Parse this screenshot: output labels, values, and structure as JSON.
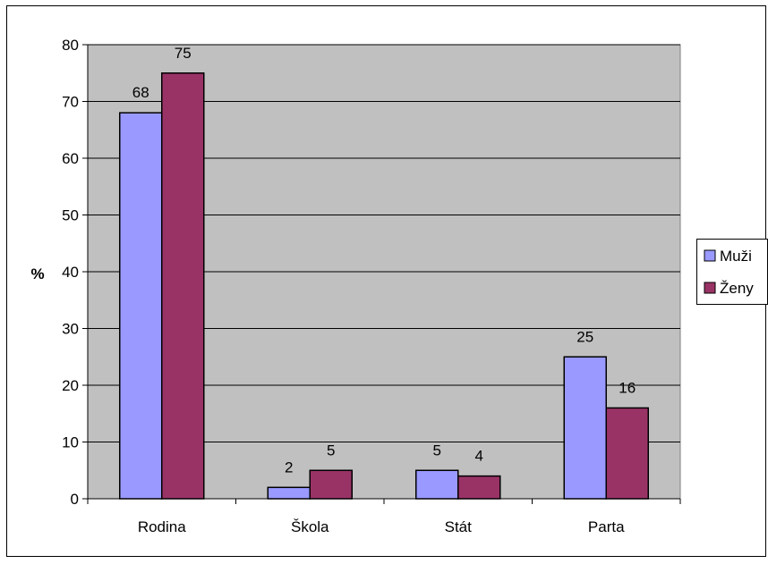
{
  "chart_data": {
    "type": "bar",
    "title": "",
    "xlabel": "",
    "ylabel": "%",
    "categories": [
      "Rodina",
      "Škola",
      "Stát",
      "Parta"
    ],
    "series": [
      {
        "name": "Muži",
        "values": [
          68,
          2,
          5,
          25
        ],
        "color": "#9999FF"
      },
      {
        "name": "Ženy",
        "values": [
          75,
          5,
          4,
          16
        ],
        "color": "#993366"
      }
    ],
    "ylim": [
      0,
      80
    ],
    "yticks": [
      0,
      10,
      20,
      30,
      40,
      50,
      60,
      70,
      80
    ],
    "grid": true,
    "legend_position": "right",
    "plot_background": "#C0C0C0"
  }
}
